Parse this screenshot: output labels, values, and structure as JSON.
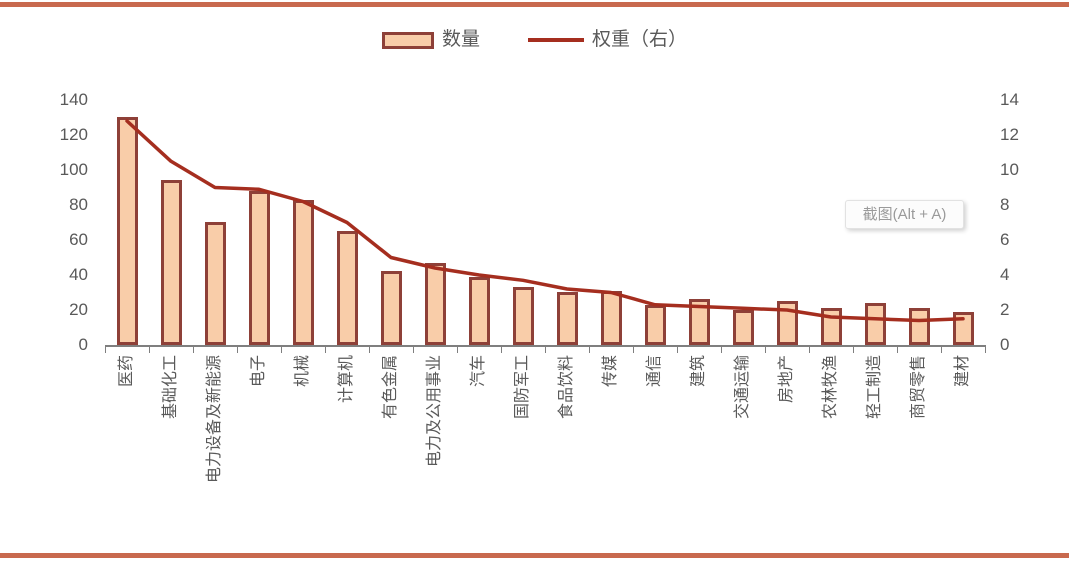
{
  "page": {
    "top_border_color": "#C8694E",
    "bottom_border_color": "#C8694E"
  },
  "legend": {
    "bar_label": "数量",
    "line_label": "权重（右）"
  },
  "tooltip": {
    "label": "截图(Alt + A)"
  },
  "chart_data": {
    "type": "bar",
    "subtype": "bar-with-line-overlay",
    "title": "",
    "xlabel": "",
    "ylabel_left": "",
    "ylabel_right": "",
    "grid": false,
    "legend_position": "top-center",
    "categories": [
      "医药",
      "基础化工",
      "电力设备及新能源",
      "电子",
      "机械",
      "计算机",
      "有色金属",
      "电力及公用事业",
      "汽车",
      "国防军工",
      "食品饮料",
      "传媒",
      "通信",
      "建筑",
      "交通运输",
      "房地产",
      "农林牧渔",
      "轻工制造",
      "商贸零售",
      "建材"
    ],
    "series": [
      {
        "name": "数量",
        "type": "bar",
        "axis": "left",
        "values": [
          130,
          94,
          70,
          88,
          83,
          65,
          42,
          47,
          39,
          33,
          30,
          31,
          23,
          26,
          20,
          25,
          21,
          24,
          21,
          19
        ]
      },
      {
        "name": "权重（右）",
        "type": "line",
        "axis": "right",
        "values": [
          12.8,
          10.5,
          9.0,
          8.9,
          8.2,
          7.0,
          5.0,
          4.4,
          4.0,
          3.7,
          3.2,
          3.0,
          2.3,
          2.2,
          2.1,
          2.0,
          1.6,
          1.5,
          1.4,
          1.5
        ]
      }
    ],
    "left_axis": {
      "min": 0,
      "max": 140,
      "step": 20,
      "tick_labels": [
        "0",
        "20",
        "40",
        "60",
        "80",
        "100",
        "120",
        "140"
      ]
    },
    "right_axis": {
      "min": 0,
      "max": 14,
      "step": 2,
      "tick_labels": [
        "0",
        "2",
        "4",
        "6",
        "8",
        "10",
        "12",
        "14"
      ]
    },
    "colors": {
      "bar_fill": "#F9CDA9",
      "bar_border": "#8E4038",
      "line": "#A52E1F",
      "axis_text": "#595959",
      "axis_line": "#7F7F7F"
    }
  }
}
